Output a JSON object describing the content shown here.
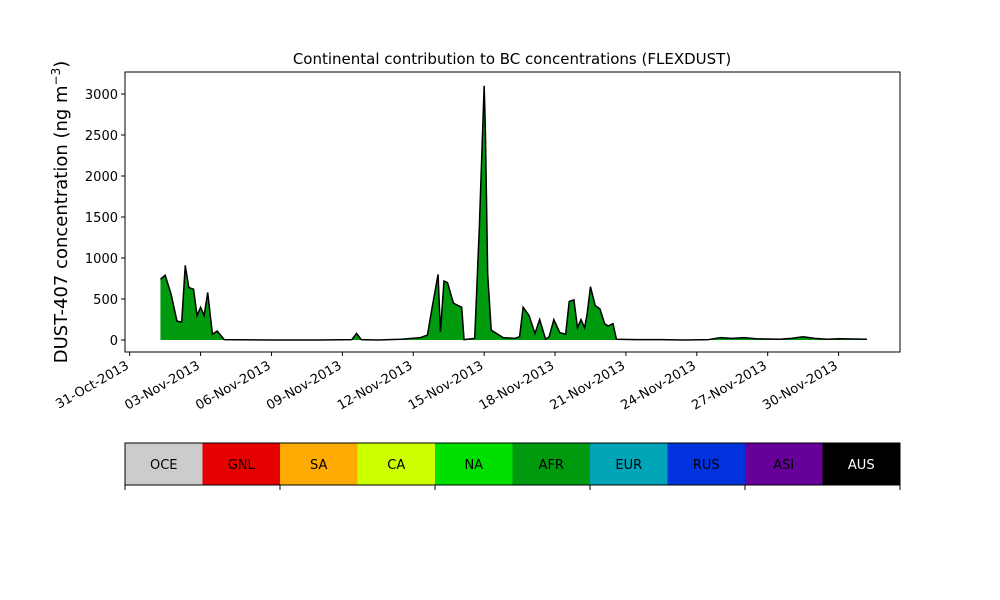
{
  "chart_data": {
    "type": "area",
    "title": "Continental contribution to BC concentrations (FLEXDUST)",
    "y_label": "DUST-407 concentration (ng m",
    "y_label_sup": "−3",
    "y_label_end": ")",
    "xlim": [
      -0.2,
      32.6
    ],
    "xticks": [
      {
        "value": 0,
        "label": "31-Oct-2013"
      },
      {
        "value": 3,
        "label": "03-Nov-2013"
      },
      {
        "value": 6,
        "label": "06-Nov-2013"
      },
      {
        "value": 9,
        "label": "09-Nov-2013"
      },
      {
        "value": 12,
        "label": "12-Nov-2013"
      },
      {
        "value": 15,
        "label": "15-Nov-2013"
      },
      {
        "value": 18,
        "label": "18-Nov-2013"
      },
      {
        "value": 21,
        "label": "21-Nov-2013"
      },
      {
        "value": 24,
        "label": "24-Nov-2013"
      },
      {
        "value": 27,
        "label": "27-Nov-2013"
      },
      {
        "value": 30,
        "label": "30-Nov-2013"
      }
    ],
    "ylim": [
      -146,
      3268
    ],
    "yticks": [
      0,
      500,
      1000,
      1500,
      2000,
      2500,
      3000
    ],
    "x": [
      1.3,
      1.5,
      1.75,
      2.0,
      2.2,
      2.35,
      2.5,
      2.7,
      2.85,
      3.0,
      3.15,
      3.3,
      3.5,
      3.7,
      4.0,
      6.0,
      8.0,
      9.4,
      9.6,
      9.8,
      10.5,
      11.5,
      12.3,
      12.6,
      12.8,
      13.05,
      13.15,
      13.3,
      13.45,
      13.7,
      13.9,
      14.05,
      14.15,
      14.6,
      14.8,
      15.0,
      15.05,
      15.15,
      15.3,
      15.8,
      16.3,
      16.5,
      16.65,
      16.9,
      17.15,
      17.35,
      17.6,
      17.75,
      17.95,
      18.2,
      18.45,
      18.6,
      18.8,
      18.95,
      19.1,
      19.25,
      19.35,
      19.5,
      19.7,
      19.9,
      20.1,
      20.25,
      20.45,
      20.6,
      21.5,
      22.5,
      23.5,
      24.5,
      25.0,
      25.5,
      26.0,
      26.5,
      27.5,
      28.0,
      28.5,
      29.0,
      29.5,
      30.0,
      31.2
    ],
    "series": [
      {
        "name": "AFR",
        "color": "#009a0e",
        "outline_color": "#000000",
        "values": [
          740,
          790,
          560,
          230,
          220,
          910,
          640,
          620,
          300,
          400,
          300,
          580,
          70,
          110,
          5,
          0,
          0,
          5,
          80,
          5,
          0,
          10,
          30,
          60,
          400,
          800,
          100,
          720,
          700,
          450,
          420,
          400,
          5,
          20,
          1400,
          3100,
          2600,
          800,
          120,
          30,
          20,
          40,
          400,
          300,
          80,
          250,
          10,
          40,
          250,
          90,
          70,
          470,
          490,
          150,
          250,
          150,
          300,
          650,
          420,
          380,
          200,
          170,
          200,
          10,
          5,
          5,
          0,
          5,
          30,
          20,
          30,
          15,
          10,
          20,
          40,
          20,
          10,
          15,
          10
        ]
      }
    ],
    "legend": {
      "labels": [
        "OCE",
        "GNL",
        "SA",
        "CA",
        "NA",
        "AFR",
        "EUR",
        "RUS",
        "ASI",
        "AUS"
      ],
      "colors": [
        "#cccccc",
        "#e60000",
        "#ffaa00",
        "#ccff00",
        "#00e000",
        "#009a0e",
        "#00a5b8",
        "#0033dd",
        "#660099",
        "#000000"
      ],
      "text_colors": [
        "#000000",
        "#000000",
        "#000000",
        "#000000",
        "#000000",
        "#000000",
        "#000000",
        "#000000",
        "#000000",
        "#ffffff"
      ]
    }
  }
}
